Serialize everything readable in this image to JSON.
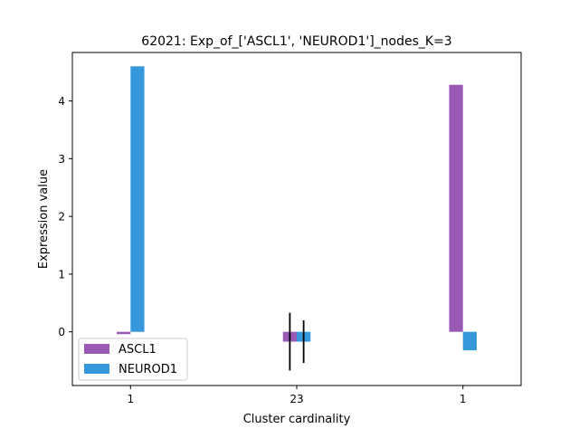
{
  "chart_data": {
    "type": "bar",
    "title": "62021: Exp_of_['ASCL1', 'NEUROD1']_nodes_K=3",
    "xlabel": "Cluster cardinality",
    "ylabel": "Expression value",
    "categories": [
      "1",
      "23",
      "1"
    ],
    "series": [
      {
        "name": "ASCL1",
        "color": "#9b59b6",
        "values": [
          -0.04,
          -0.17,
          4.28
        ],
        "error": [
          null,
          0.5,
          null
        ]
      },
      {
        "name": "NEUROD1",
        "color": "#3498db",
        "values": [
          4.6,
          -0.17,
          -0.32
        ],
        "error": [
          null,
          0.37,
          null
        ]
      }
    ],
    "ylim": [
      -0.93,
      4.84
    ],
    "yticks": [
      "0",
      "1",
      "2",
      "3",
      "4"
    ],
    "legend_position": "lower-left",
    "grid": false
  }
}
